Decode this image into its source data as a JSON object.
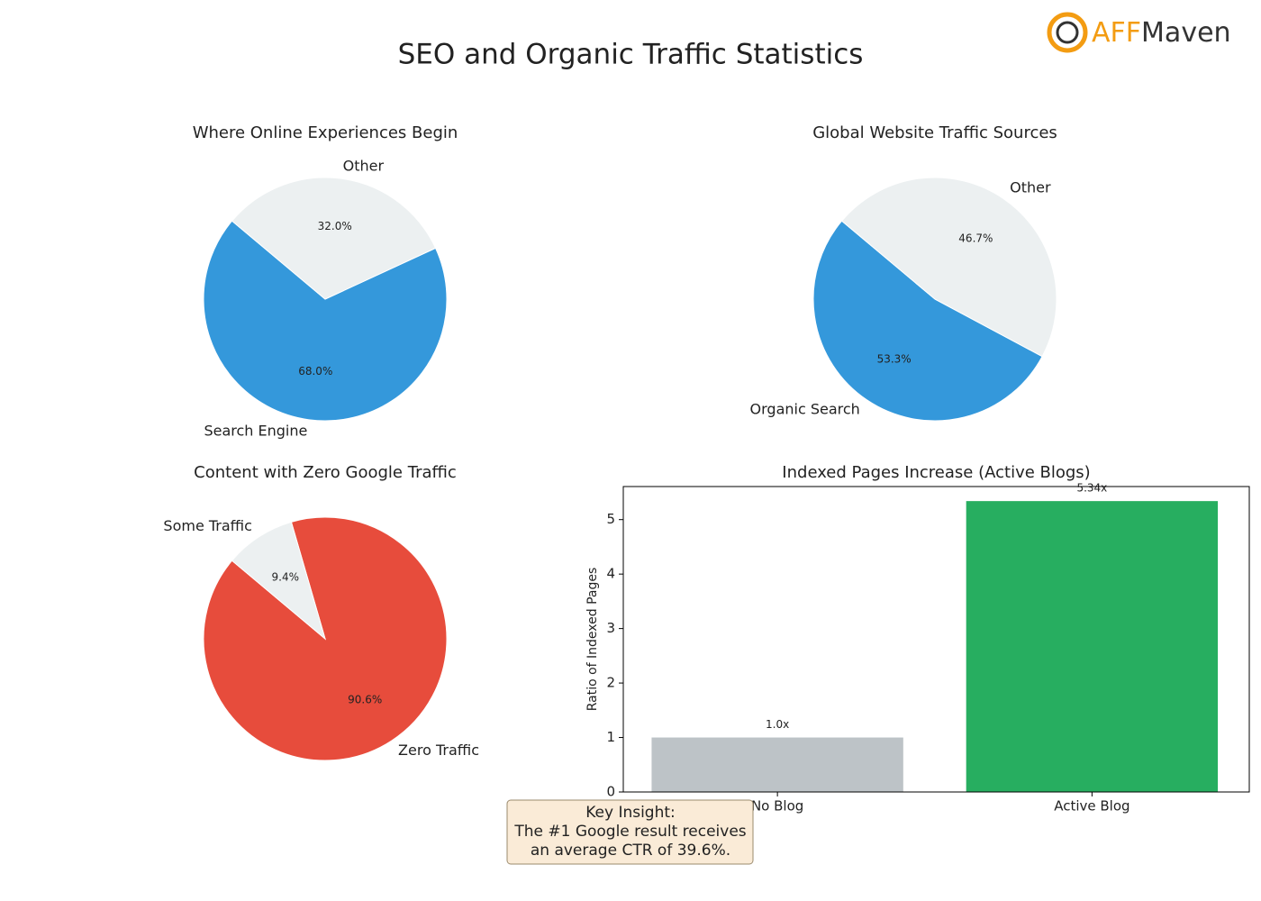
{
  "title": "SEO and Organic Traffic Statistics",
  "logo": [
    "AFF",
    "Maven"
  ],
  "insight": [
    "Key Insight:",
    "The #1 Google result receives",
    "an average CTR of 39.6%."
  ],
  "chart_data": [
    {
      "type": "pie",
      "title": "Where Online Experiences Begin",
      "categories": [
        "Search Engine",
        "Other"
      ],
      "values": [
        68.0,
        32.0
      ],
      "value_labels": [
        "68.0%",
        "32.0%"
      ],
      "colors": [
        "#3498db",
        "#ecf0f1"
      ]
    },
    {
      "type": "pie",
      "title": "Global Website Traffic Sources",
      "categories": [
        "Organic Search",
        "Other"
      ],
      "values": [
        53.3,
        46.7
      ],
      "value_labels": [
        "53.3%",
        "46.7%"
      ],
      "colors": [
        "#3498db",
        "#ecf0f1"
      ]
    },
    {
      "type": "pie",
      "title": "Content with Zero Google Traffic",
      "categories": [
        "Zero Traffic",
        "Some Traffic"
      ],
      "values": [
        90.6,
        9.4
      ],
      "value_labels": [
        "90.6%",
        "9.4%"
      ],
      "colors": [
        "#e74c3c",
        "#ecf0f1"
      ]
    },
    {
      "type": "bar",
      "title": "Indexed Pages Increase (Active Blogs)",
      "categories": [
        "No Blog",
        "Active Blog"
      ],
      "values": [
        1.0,
        5.34
      ],
      "value_labels": [
        "1.0x",
        "5.34x"
      ],
      "colors": [
        "#bdc3c7",
        "#27ae60"
      ],
      "y_label": "Ratio of Indexed Pages",
      "ylim": [
        0,
        5.607
      ],
      "yticks": [
        0,
        1,
        2,
        3,
        4,
        5
      ]
    }
  ]
}
